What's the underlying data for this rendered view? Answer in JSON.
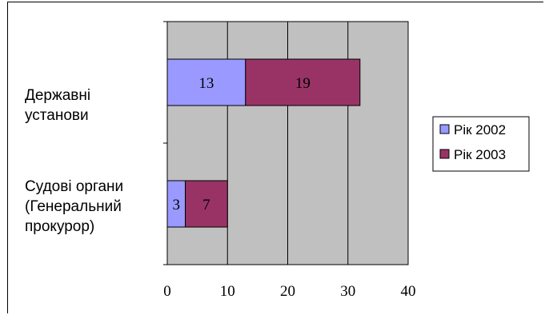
{
  "chart_data": {
    "type": "bar",
    "orientation": "horizontal",
    "stacked": true,
    "categories": [
      "Державні\nустанови",
      "Судові  органи\n(Генеральний\nпрокурор)"
    ],
    "series": [
      {
        "name": "Рік 2002",
        "values": [
          13,
          3
        ],
        "color": "#9999ff"
      },
      {
        "name": "Рік 2003",
        "values": [
          19,
          7
        ],
        "color": "#993366"
      }
    ],
    "xlim": [
      0,
      40
    ],
    "xticks": [
      0,
      10,
      20,
      30,
      40
    ],
    "grid": true,
    "plot_background": "#c0c0c0",
    "legend_position": "right"
  }
}
